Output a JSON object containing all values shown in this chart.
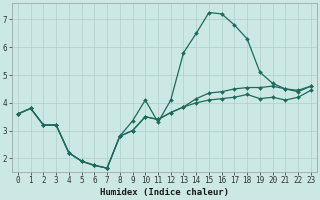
{
  "xlabel": "Humidex (Indice chaleur)",
  "xlim": [
    -0.5,
    23.5
  ],
  "ylim": [
    1.5,
    7.6
  ],
  "xticks": [
    0,
    1,
    2,
    3,
    4,
    5,
    6,
    7,
    8,
    9,
    10,
    11,
    12,
    13,
    14,
    15,
    16,
    17,
    18,
    19,
    20,
    21,
    22,
    23
  ],
  "yticks": [
    2,
    3,
    4,
    5,
    6,
    7
  ],
  "bg_color": "#cce8e4",
  "grid_color": "#aad0cc",
  "line_color": "#1c6b5c",
  "line1_y": [
    3.6,
    3.8,
    3.2,
    3.2,
    2.2,
    1.9,
    1.75,
    1.65,
    2.8,
    3.35,
    4.1,
    3.3,
    4.1,
    5.8,
    6.5,
    7.25,
    7.2,
    6.8,
    6.3,
    5.1,
    4.7,
    4.5,
    4.4,
    4.6
  ],
  "line2_y": [
    3.6,
    3.8,
    3.2,
    3.2,
    2.2,
    1.9,
    1.75,
    1.65,
    2.8,
    3.0,
    3.5,
    3.4,
    3.65,
    3.85,
    4.15,
    4.35,
    4.4,
    4.5,
    4.55,
    4.55,
    4.6,
    4.5,
    4.45,
    4.6
  ],
  "line3_y": [
    3.6,
    3.8,
    3.2,
    3.2,
    2.2,
    1.9,
    1.75,
    1.65,
    2.8,
    3.0,
    3.5,
    3.4,
    3.65,
    3.85,
    4.0,
    4.1,
    4.15,
    4.2,
    4.3,
    4.15,
    4.2,
    4.1,
    4.2,
    4.45
  ],
  "marker_size": 2.0,
  "line_width": 0.9,
  "tick_fontsize": 5.5,
  "xlabel_fontsize": 6.5
}
